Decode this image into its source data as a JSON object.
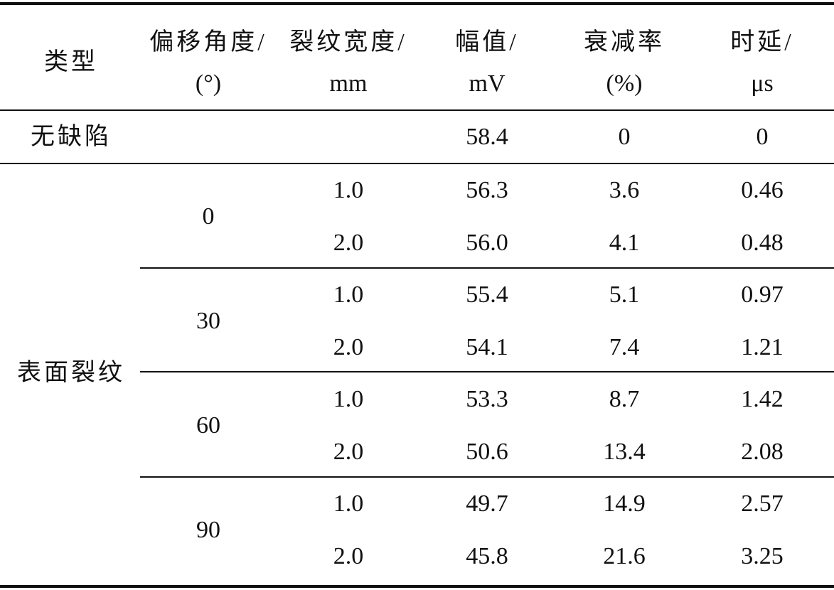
{
  "table": {
    "header": [
      {
        "lines": [
          "类型"
        ]
      },
      {
        "lines": [
          "偏移角度/",
          "(°)"
        ]
      },
      {
        "lines": [
          "裂纹宽度/",
          "mm"
        ]
      },
      {
        "lines": [
          "幅值/",
          "mV"
        ]
      },
      {
        "lines": [
          "衰减率",
          "(%)"
        ]
      },
      {
        "lines": [
          "时延/",
          "μs"
        ]
      }
    ],
    "no_defect": {
      "type": "无缺陷",
      "amplitude": "58.4",
      "attenuation": "0",
      "delay": "0"
    },
    "surface_crack": {
      "type": "表面裂纹",
      "groups": [
        {
          "angle": "0",
          "rows": [
            {
              "width": "1.0",
              "amplitude": "56.3",
              "attenuation": "3.6",
              "delay": "0.46"
            },
            {
              "width": "2.0",
              "amplitude": "56.0",
              "attenuation": "4.1",
              "delay": "0.48"
            }
          ]
        },
        {
          "angle": "30",
          "rows": [
            {
              "width": "1.0",
              "amplitude": "55.4",
              "attenuation": "5.1",
              "delay": "0.97"
            },
            {
              "width": "2.0",
              "amplitude": "54.1",
              "attenuation": "7.4",
              "delay": "1.21"
            }
          ]
        },
        {
          "angle": "60",
          "rows": [
            {
              "width": "1.0",
              "amplitude": "53.3",
              "attenuation": "8.7",
              "delay": "1.42"
            },
            {
              "width": "2.0",
              "amplitude": "50.6",
              "attenuation": "13.4",
              "delay": "2.08"
            }
          ]
        },
        {
          "angle": "90",
          "rows": [
            {
              "width": "1.0",
              "amplitude": "49.7",
              "attenuation": "14.9",
              "delay": "2.57"
            },
            {
              "width": "2.0",
              "amplitude": "45.8",
              "attenuation": "21.6",
              "delay": "3.25"
            }
          ]
        }
      ]
    }
  }
}
